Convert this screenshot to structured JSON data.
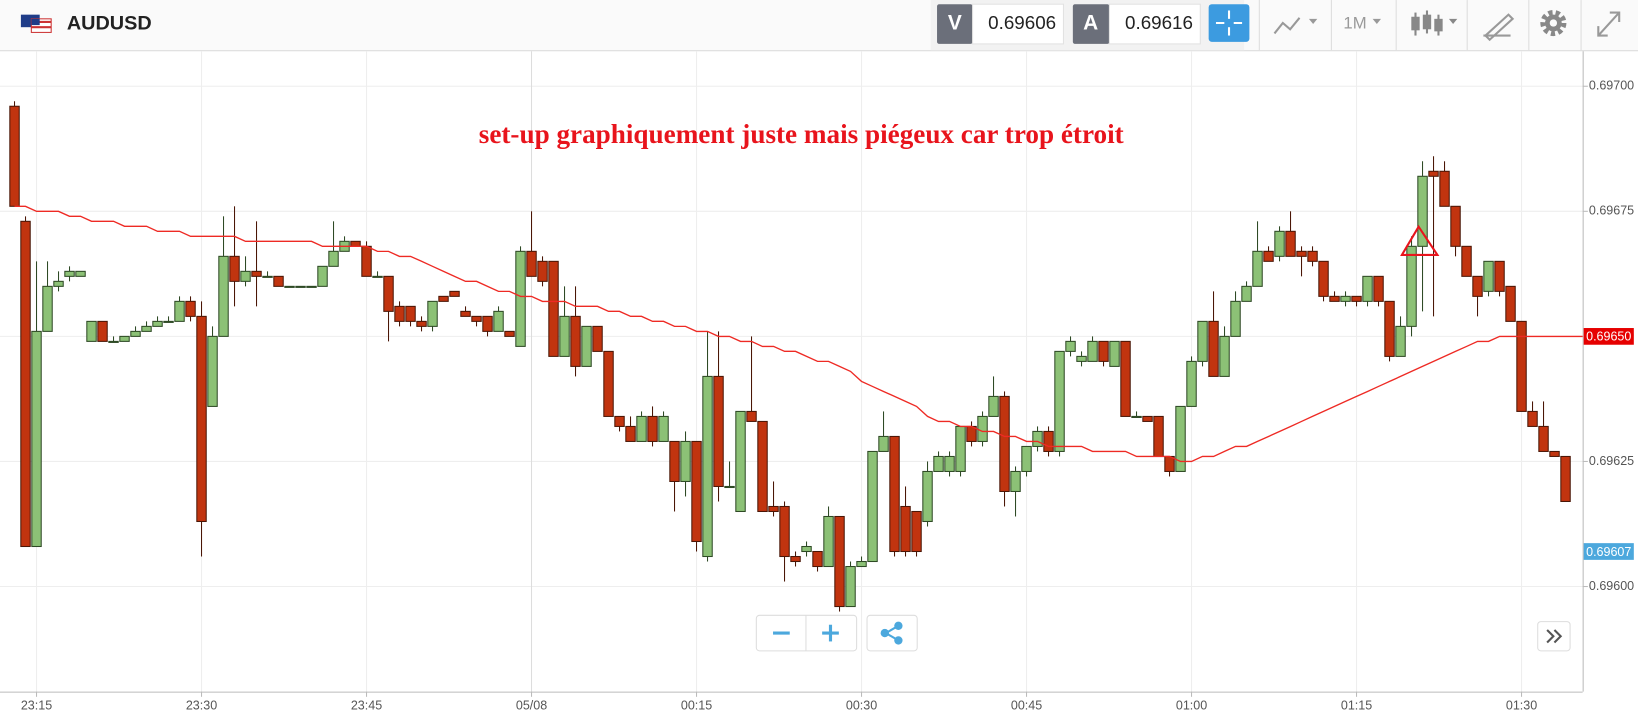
{
  "toolbar": {
    "symbol": "AUDUSD",
    "bid_label": "V",
    "bid": "0.69606",
    "ask_label": "A",
    "ask": "0.69616",
    "timeframe": "1M"
  },
  "chart_data": {
    "type": "candlestick",
    "annotation": {
      "text": "set-up graphiquement juste mais piégeux car trop étroit",
      "color": "#e8141c"
    },
    "categories": [
      null,
      null,
      "23:15",
      null,
      null,
      null,
      null,
      null,
      null,
      null,
      null,
      null,
      null,
      null,
      null,
      null,
      null,
      "23:30",
      null,
      null,
      null,
      null,
      null,
      null,
      null,
      null,
      null,
      null,
      null,
      null,
      null,
      null,
      "23:45",
      null,
      null,
      null,
      null,
      null,
      null,
      null,
      null,
      null,
      null,
      null,
      null,
      null,
      null,
      "05/08",
      null,
      null,
      null,
      null,
      null,
      null,
      null,
      null,
      null,
      null,
      null,
      null,
      null,
      null,
      "00:15",
      null,
      null,
      null,
      null,
      null,
      null,
      null,
      null,
      null,
      null,
      null,
      null,
      null,
      null,
      "00:30",
      null,
      null,
      null,
      null,
      null,
      null,
      null,
      null,
      null,
      null,
      null,
      null,
      null,
      null,
      "00:45",
      null,
      null,
      null,
      null,
      null,
      null,
      null,
      null,
      null,
      null,
      null,
      null,
      null,
      null,
      "01:00",
      null,
      null,
      null,
      null,
      null,
      null,
      null,
      null,
      null,
      null,
      null,
      null,
      null,
      null,
      "01:15",
      null,
      null,
      null,
      null,
      null,
      null,
      null,
      null,
      null,
      null,
      null,
      null,
      null,
      null,
      "01:30",
      null,
      null,
      null,
      null
    ],
    "open": [
      0.69696,
      0.69673,
      0.69608,
      0.69651,
      0.6966,
      0.69662,
      0.69662,
      0.69649,
      0.69653,
      0.69649,
      0.69649,
      0.6965,
      0.69651,
      0.69652,
      0.69653,
      0.69653,
      0.69657,
      0.69654,
      0.69636,
      0.6965,
      0.69666,
      0.69661,
      0.69663,
      0.69662,
      0.69662,
      0.6966,
      0.6966,
      0.6966,
      0.6966,
      0.69664,
      0.69667,
      0.69669,
      0.69668,
      0.69662,
      0.69662,
      0.69656,
      0.69656,
      0.69653,
      0.69652,
      0.69658,
      0.69659,
      0.69655,
      0.69654,
      0.69654,
      0.69651,
      0.69651,
      0.69648,
      0.69667,
      0.69665,
      0.69665,
      0.69646,
      0.69654,
      0.69644,
      0.69652,
      0.69647,
      0.69634,
      0.69632,
      0.69629,
      0.69634,
      0.69629,
      0.69629,
      0.69621,
      0.69629,
      0.69606,
      0.69642,
      0.6962,
      0.69615,
      0.69635,
      0.69633,
      0.69616,
      0.69616,
      0.69606,
      0.69607,
      0.69607,
      0.69604,
      0.69614,
      0.69596,
      0.69604,
      0.69605,
      0.69627,
      0.6963,
      0.69616,
      0.69615,
      0.69613,
      0.69623,
      0.69623,
      0.69623,
      0.69632,
      0.69629,
      0.69634,
      0.69638,
      0.69619,
      0.69623,
      0.69628,
      0.69631,
      0.69627,
      0.69647,
      0.69645,
      0.69645,
      0.69649,
      0.69644,
      0.69649,
      0.69634,
      0.69634,
      0.69634,
      0.69626,
      0.69623,
      0.69636,
      0.69645,
      0.69653,
      0.69642,
      0.6965,
      0.69657,
      0.6966,
      0.69667,
      0.69666,
      0.69671,
      0.69667,
      0.69667,
      0.69665,
      0.69658,
      0.69657,
      0.69658,
      0.69657,
      0.69662,
      0.69657,
      0.69646,
      0.69652,
      0.69668,
      0.69683,
      0.69683,
      0.69676,
      0.69668,
      0.69662,
      0.69659,
      0.69665,
      0.6966,
      0.69653,
      0.69635,
      0.69632,
      0.69627,
      0.69626
    ],
    "high": [
      0.69697,
      0.69674,
      0.69665,
      0.69665,
      0.69663,
      0.69664,
      0.69663,
      0.69653,
      0.69653,
      0.6965,
      0.6965,
      0.69652,
      0.69653,
      0.69654,
      0.69654,
      0.69658,
      0.69658,
      0.69657,
      0.69652,
      0.69674,
      0.69676,
      0.69666,
      0.69673,
      0.69663,
      0.69662,
      0.6966,
      0.6966,
      0.6966,
      0.69664,
      0.69673,
      0.6967,
      0.69669,
      0.69669,
      0.69663,
      0.69662,
      0.69657,
      0.69656,
      0.69654,
      0.69657,
      0.69658,
      0.69659,
      0.69656,
      0.69654,
      0.69654,
      0.69656,
      0.69651,
      0.69668,
      0.69675,
      0.69666,
      0.69665,
      0.6966,
      0.6966,
      0.69652,
      0.69652,
      0.69647,
      0.69634,
      0.69634,
      0.69635,
      0.69636,
      0.69635,
      0.69629,
      0.69631,
      0.69629,
      0.69651,
      0.69651,
      0.69625,
      0.69635,
      0.6965,
      0.69633,
      0.69621,
      0.69617,
      0.69607,
      0.69609,
      0.69607,
      0.69616,
      0.69614,
      0.69605,
      0.69606,
      0.69627,
      0.69635,
      0.6963,
      0.6962,
      0.69615,
      0.69625,
      0.69627,
      0.69627,
      0.69632,
      0.69633,
      0.69635,
      0.69642,
      0.69639,
      0.69624,
      0.69628,
      0.69632,
      0.69632,
      0.69647,
      0.6965,
      0.69647,
      0.6965,
      0.69649,
      0.69649,
      0.69649,
      0.69635,
      0.69634,
      0.69634,
      0.69626,
      0.69636,
      0.69646,
      0.69653,
      0.69659,
      0.69652,
      0.69659,
      0.69661,
      0.69673,
      0.69668,
      0.69672,
      0.69675,
      0.69668,
      0.69668,
      0.69665,
      0.69659,
      0.69659,
      0.69658,
      0.69662,
      0.69662,
      0.69657,
      0.69654,
      0.6967,
      0.69685,
      0.69686,
      0.69685,
      0.69676,
      0.69668,
      0.69662,
      0.69665,
      0.69665,
      0.6966,
      0.69653,
      0.69637,
      0.69637,
      0.69627,
      0.69626
    ],
    "low": [
      0.69676,
      0.69608,
      0.69608,
      0.69651,
      0.69659,
      0.69661,
      0.69662,
      0.69649,
      0.69649,
      0.69649,
      0.69649,
      0.6965,
      0.69651,
      0.69652,
      0.69653,
      0.69653,
      0.69653,
      0.69606,
      0.69636,
      0.6965,
      0.69656,
      0.6966,
      0.69656,
      0.69662,
      0.6966,
      0.6966,
      0.6966,
      0.6966,
      0.6966,
      0.69664,
      0.69667,
      0.69668,
      0.69662,
      0.69662,
      0.69649,
      0.69652,
      0.69652,
      0.69651,
      0.69651,
      0.69657,
      0.69658,
      0.69654,
      0.69652,
      0.6965,
      0.69651,
      0.6965,
      0.69648,
      0.69662,
      0.6966,
      0.69646,
      0.69646,
      0.69642,
      0.69644,
      0.69647,
      0.69634,
      0.69631,
      0.69629,
      0.69629,
      0.69628,
      0.69629,
      0.69615,
      0.69618,
      0.69607,
      0.69605,
      0.69617,
      0.6962,
      0.69615,
      0.69633,
      0.69615,
      0.69614,
      0.69601,
      0.69604,
      0.69606,
      0.69603,
      0.69604,
      0.69595,
      0.69596,
      0.69604,
      0.69605,
      0.69627,
      0.69606,
      0.69606,
      0.69606,
      0.69612,
      0.69623,
      0.69622,
      0.69622,
      0.69628,
      0.69628,
      0.69634,
      0.69616,
      0.69614,
      0.69622,
      0.69627,
      0.69626,
      0.69626,
      0.69646,
      0.69644,
      0.69645,
      0.69644,
      0.69644,
      0.69634,
      0.69634,
      0.69633,
      0.69626,
      0.69622,
      0.69623,
      0.69636,
      0.69644,
      0.69642,
      0.69642,
      0.6965,
      0.69657,
      0.6966,
      0.69665,
      0.69665,
      0.69666,
      0.69662,
      0.69664,
      0.69657,
      0.69657,
      0.69656,
      0.69656,
      0.69656,
      0.69656,
      0.69645,
      0.69646,
      0.6965,
      0.69655,
      0.69654,
      0.69676,
      0.69666,
      0.69662,
      0.69654,
      0.69658,
      0.69658,
      0.69653,
      0.69635,
      0.69632,
      0.69627,
      0.69626,
      0.69617
    ],
    "close": [
      0.69676,
      0.69608,
      0.69651,
      0.6966,
      0.69661,
      0.69663,
      0.69663,
      0.69653,
      0.69649,
      0.69649,
      0.6965,
      0.69651,
      0.69652,
      0.69653,
      0.69653,
      0.69657,
      0.69654,
      0.69613,
      0.6965,
      0.69666,
      0.69661,
      0.69663,
      0.69662,
      0.69662,
      0.6966,
      0.6966,
      0.6966,
      0.6966,
      0.69664,
      0.69667,
      0.69669,
      0.69668,
      0.69662,
      0.69662,
      0.69655,
      0.69653,
      0.69653,
      0.69652,
      0.69657,
      0.69657,
      0.69658,
      0.69654,
      0.69653,
      0.69651,
      0.69655,
      0.6965,
      0.69667,
      0.69662,
      0.69661,
      0.69646,
      0.69654,
      0.69644,
      0.69652,
      0.69647,
      0.69634,
      0.69632,
      0.69629,
      0.69634,
      0.69629,
      0.69634,
      0.69621,
      0.69629,
      0.69609,
      0.69642,
      0.6962,
      0.6962,
      0.69635,
      0.69633,
      0.69615,
      0.69615,
      0.69606,
      0.69605,
      0.69608,
      0.69604,
      0.69614,
      0.69596,
      0.69604,
      0.69605,
      0.69627,
      0.6963,
      0.69607,
      0.69607,
      0.69607,
      0.69623,
      0.69626,
      0.69626,
      0.69632,
      0.69629,
      0.69634,
      0.69638,
      0.69619,
      0.69623,
      0.69628,
      0.69631,
      0.69627,
      0.69647,
      0.69649,
      0.69646,
      0.69649,
      0.69645,
      0.69649,
      0.69634,
      0.69634,
      0.69633,
      0.69626,
      0.69623,
      0.69636,
      0.69645,
      0.69653,
      0.69642,
      0.6965,
      0.69657,
      0.6966,
      0.69667,
      0.69665,
      0.69671,
      0.69666,
      0.69666,
      0.69665,
      0.69658,
      0.69657,
      0.69658,
      0.69657,
      0.69662,
      0.69657,
      0.69646,
      0.69652,
      0.69668,
      0.69682,
      0.69682,
      0.69676,
      0.69668,
      0.69662,
      0.69658,
      0.69665,
      0.69659,
      0.69653,
      0.69635,
      0.69632,
      0.69627,
      0.69626,
      0.69617
    ],
    "up_color": "#8cc176",
    "down_color": "#c1340f",
    "moving_average": {
      "color": "#ee2a24",
      "values": [
        0.69676,
        0.69676,
        0.69675,
        0.69675,
        0.69675,
        0.69674,
        0.69674,
        0.69673,
        0.69673,
        0.69673,
        0.69672,
        0.69672,
        0.69672,
        0.69671,
        0.69671,
        0.69671,
        0.6967,
        0.6967,
        0.6967,
        0.6967,
        0.6967,
        0.69669,
        0.69669,
        0.69669,
        0.69669,
        0.69669,
        0.69669,
        0.69669,
        0.69668,
        0.69668,
        0.69668,
        0.69668,
        0.69668,
        0.69667,
        0.69667,
        0.69666,
        0.69666,
        0.69665,
        0.69664,
        0.69663,
        0.69662,
        0.69661,
        0.69661,
        0.6966,
        0.69659,
        0.69659,
        0.69658,
        0.69658,
        0.69657,
        0.69657,
        0.69657,
        0.69656,
        0.69656,
        0.69656,
        0.69655,
        0.69655,
        0.69654,
        0.69654,
        0.69653,
        0.69653,
        0.69652,
        0.69652,
        0.69651,
        0.69651,
        0.6965,
        0.6965,
        0.69649,
        0.69649,
        0.69648,
        0.69648,
        0.69647,
        0.69647,
        0.69646,
        0.69645,
        0.69645,
        0.69644,
        0.69643,
        0.69641,
        0.6964,
        0.69639,
        0.69638,
        0.69637,
        0.69636,
        0.69634,
        0.69633,
        0.69633,
        0.69632,
        0.69632,
        0.69631,
        0.69631,
        0.6963,
        0.6963,
        0.69629,
        0.69629,
        0.69628,
        0.69628,
        0.69628,
        0.69628,
        0.69627,
        0.69627,
        0.69627,
        0.69627,
        0.69626,
        0.69626,
        0.69626,
        0.69626,
        0.69625,
        0.69625,
        0.69626,
        0.69626,
        0.69627,
        0.69628,
        0.69628,
        0.69629,
        0.6963,
        0.69631,
        0.69632,
        0.69633,
        0.69634,
        0.69635,
        0.69636,
        0.69637,
        0.69638,
        0.69639,
        0.6964,
        0.69641,
        0.69642,
        0.69643,
        0.69644,
        0.69645,
        0.69646,
        0.69647,
        0.69648,
        0.69649,
        0.69649,
        0.6965,
        0.6965,
        0.6965,
        0.6965,
        0.6965,
        0.6965,
        0.6965
      ]
    },
    "ylim": [
      0.69579,
      0.69707
    ],
    "yticks": [
      {
        "value": 0.697,
        "label": "0.69700"
      },
      {
        "value": 0.69675,
        "label": "0.69675"
      },
      {
        "value": 0.6965,
        "label": "0.69650"
      },
      {
        "value": 0.69625,
        "label": "0.69625"
      },
      {
        "value": 0.696,
        "label": "0.69600"
      }
    ],
    "grid": true,
    "price_tags": [
      {
        "value": 0.6965,
        "label": "0.69650",
        "color": "#e60000"
      },
      {
        "value": 0.69607,
        "label": "0.69607",
        "color": "#4ca8dd"
      }
    ]
  }
}
